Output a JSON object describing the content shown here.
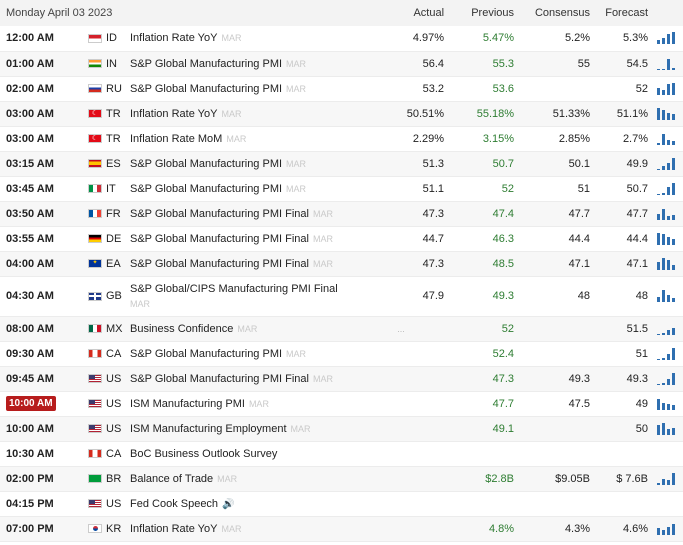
{
  "header": {
    "date": "Monday April 03 2023",
    "actual": "Actual",
    "previous": "Previous",
    "consensus": "Consensus",
    "forecast": "Forecast"
  },
  "rows": [
    {
      "time": "12:00 AM",
      "country": "ID",
      "flag": "id",
      "event": "Inflation Rate YoY",
      "period": "MAR",
      "actual": "4.97%",
      "previous": "5.47%",
      "consensus": "5.2%",
      "forecast": "5.3%",
      "spark": [
        0.3,
        0.5,
        0.8,
        1.0
      ]
    },
    {
      "time": "01:00 AM",
      "country": "IN",
      "flag": "in",
      "event": "S&P Global Manufacturing PMI",
      "period": "MAR",
      "actual": "56.4",
      "previous": "55.3",
      "consensus": "55",
      "forecast": "54.5",
      "spark": [
        0.1,
        0.1,
        0.9,
        0.2
      ]
    },
    {
      "time": "02:00 AM",
      "country": "RU",
      "flag": "ru",
      "event": "S&P Global Manufacturing PMI",
      "period": "MAR",
      "actual": "53.2",
      "previous": "53.6",
      "consensus": "",
      "forecast": "52",
      "spark": [
        0.6,
        0.4,
        0.9,
        1.0
      ]
    },
    {
      "time": "03:00 AM",
      "country": "TR",
      "flag": "tr",
      "event": "Inflation Rate YoY",
      "period": "MAR",
      "actual": "50.51%",
      "previous": "55.18%",
      "consensus": "51.33%",
      "forecast": "51.1%",
      "spark": [
        1.0,
        0.8,
        0.6,
        0.5
      ]
    },
    {
      "time": "03:00 AM",
      "country": "TR",
      "flag": "tr",
      "event": "Inflation Rate MoM",
      "period": "MAR",
      "actual": "2.29%",
      "previous": "3.15%",
      "consensus": "2.85%",
      "forecast": "2.7%",
      "spark": [
        0.2,
        0.9,
        0.4,
        0.3
      ]
    },
    {
      "time": "03:15 AM",
      "country": "ES",
      "flag": "es",
      "event": "S&P Global Manufacturing PMI",
      "period": "MAR",
      "actual": "51.3",
      "previous": "50.7",
      "consensus": "50.1",
      "forecast": "49.9",
      "spark": [
        0.1,
        0.3,
        0.6,
        1.0
      ]
    },
    {
      "time": "03:45 AM",
      "country": "IT",
      "flag": "it",
      "event": "S&P Global Manufacturing PMI",
      "period": "MAR",
      "actual": "51.1",
      "previous": "52",
      "consensus": "51",
      "forecast": "50.7",
      "spark": [
        0.1,
        0.2,
        0.7,
        1.0
      ]
    },
    {
      "time": "03:50 AM",
      "country": "FR",
      "flag": "fr",
      "event": "S&P Global Manufacturing PMI Final",
      "period": "MAR",
      "actual": "47.3",
      "previous": "47.4",
      "consensus": "47.7",
      "forecast": "47.7",
      "spark": [
        0.5,
        0.9,
        0.3,
        0.4
      ]
    },
    {
      "time": "03:55 AM",
      "country": "DE",
      "flag": "de",
      "event": "S&P Global Manufacturing PMI Final",
      "period": "MAR",
      "actual": "44.7",
      "previous": "46.3",
      "consensus": "44.4",
      "forecast": "44.4",
      "spark": [
        1.0,
        0.9,
        0.7,
        0.5
      ]
    },
    {
      "time": "04:00 AM",
      "country": "EA",
      "flag": "ea",
      "event": "S&P Global Manufacturing PMI Final",
      "period": "MAR",
      "actual": "47.3",
      "previous": "48.5",
      "consensus": "47.1",
      "forecast": "47.1",
      "spark": [
        0.7,
        1.0,
        0.8,
        0.4
      ]
    },
    {
      "time": "04:30 AM",
      "country": "GB",
      "flag": "gb",
      "event": "S&P Global/CIPS Manufacturing PMI Final",
      "period": "MAR",
      "actual": "47.9",
      "previous": "49.3",
      "consensus": "48",
      "forecast": "48",
      "spark": [
        0.4,
        1.0,
        0.6,
        0.3
      ],
      "tall": true
    },
    {
      "time": "08:00 AM",
      "country": "MX",
      "flag": "mx",
      "event": "Business Confidence",
      "period": "MAR",
      "actual": "",
      "actual_dim": "...",
      "previous": "52",
      "consensus": "",
      "forecast": "51.5",
      "spark": [
        0.1,
        0.2,
        0.4,
        0.6
      ]
    },
    {
      "time": "09:30 AM",
      "country": "CA",
      "flag": "ca",
      "event": "S&P Global Manufacturing PMI",
      "period": "MAR",
      "actual": "",
      "previous": "52.4",
      "consensus": "",
      "forecast": "51",
      "spark": [
        0.1,
        0.2,
        0.5,
        1.0
      ]
    },
    {
      "time": "09:45 AM",
      "country": "US",
      "flag": "us",
      "event": "S&P Global Manufacturing PMI Final",
      "period": "MAR",
      "actual": "",
      "previous": "47.3",
      "consensus": "49.3",
      "forecast": "49.3",
      "spark": [
        0.1,
        0.2,
        0.5,
        1.0
      ]
    },
    {
      "time": "10:00 AM",
      "country": "US",
      "flag": "us",
      "event": "ISM Manufacturing PMI",
      "period": "MAR",
      "actual": "",
      "previous": "47.7",
      "consensus": "47.5",
      "forecast": "49",
      "spark": [
        0.9,
        0.6,
        0.5,
        0.4
      ],
      "highlight": true
    },
    {
      "time": "10:00 AM",
      "country": "US",
      "flag": "us",
      "event": "ISM Manufacturing Employment",
      "period": "MAR",
      "actual": "",
      "previous": "49.1",
      "consensus": "",
      "forecast": "50",
      "spark": [
        0.8,
        1.0,
        0.5,
        0.6
      ]
    },
    {
      "time": "10:30 AM",
      "country": "CA",
      "flag": "ca",
      "event": "BoC Business Outlook Survey",
      "period": "",
      "actual": "",
      "previous": "",
      "consensus": "",
      "forecast": "",
      "spark": []
    },
    {
      "time": "02:00 PM",
      "country": "BR",
      "flag": "br",
      "event": "Balance of Trade",
      "period": "MAR",
      "actual": "",
      "previous": "$2.8B",
      "consensus": "$9.05B",
      "forecast": "$ 7.6B",
      "spark": [
        0.2,
        0.5,
        0.4,
        1.0
      ]
    },
    {
      "time": "04:15 PM",
      "country": "US",
      "flag": "us",
      "event": "Fed Cook Speech",
      "period": "",
      "speaker": true,
      "actual": "",
      "previous": "",
      "consensus": "",
      "forecast": "",
      "spark": []
    },
    {
      "time": "07:00 PM",
      "country": "KR",
      "flag": "kr",
      "event": "Inflation Rate YoY",
      "period": "MAR",
      "actual": "",
      "previous": "4.8%",
      "consensus": "4.3%",
      "forecast": "4.6%",
      "spark": [
        0.6,
        0.4,
        0.7,
        0.9
      ]
    }
  ],
  "colors": {
    "positive": "#2e7d32",
    "spark": "#2f6fb0",
    "highlight": "#b71c1c"
  }
}
